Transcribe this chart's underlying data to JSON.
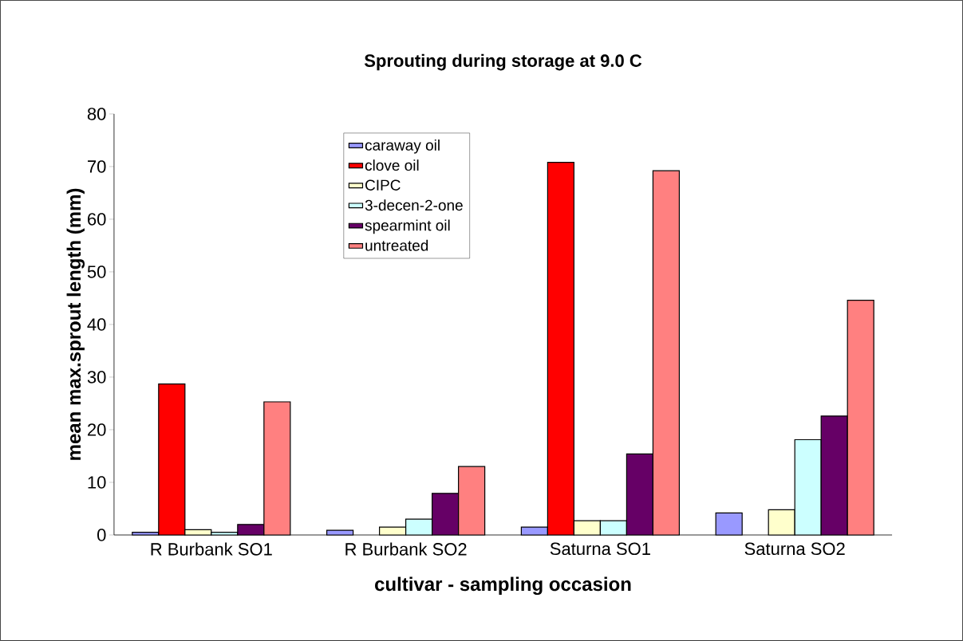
{
  "chart_data": {
    "type": "bar",
    "title": "Sprouting during storage at 9.0 C",
    "xlabel": "cultivar - sampling occasion",
    "ylabel": "mean max.sprout length (mm)",
    "categories": [
      "R Burbank SO1",
      "R Burbank SO2",
      "Saturna SO1",
      "Saturna SO2"
    ],
    "series": [
      {
        "name": "caraway oil",
        "color": "#9999ff",
        "values": [
          0.5,
          0.9,
          1.5,
          4.2
        ]
      },
      {
        "name": "clove oil",
        "color": "#ff0000",
        "values": [
          28.7,
          null,
          70.8,
          null
        ]
      },
      {
        "name": "CIPC",
        "color": "#ffffcc",
        "values": [
          1.0,
          1.5,
          2.7,
          4.8
        ]
      },
      {
        "name": "3-decen-2-one",
        "color": "#ccffff",
        "values": [
          0.5,
          3.0,
          2.7,
          18.1
        ]
      },
      {
        "name": "spearmint oil",
        "color": "#660066",
        "values": [
          2.0,
          7.9,
          15.4,
          22.6
        ]
      },
      {
        "name": "untreated",
        "color": "#ff8080",
        "values": [
          25.3,
          13.0,
          69.2,
          44.6
        ]
      }
    ],
    "ylim": [
      0,
      80
    ],
    "yticks": [
      0,
      10,
      20,
      30,
      40,
      50,
      60,
      70,
      80
    ],
    "grid": false,
    "legend": "top"
  }
}
